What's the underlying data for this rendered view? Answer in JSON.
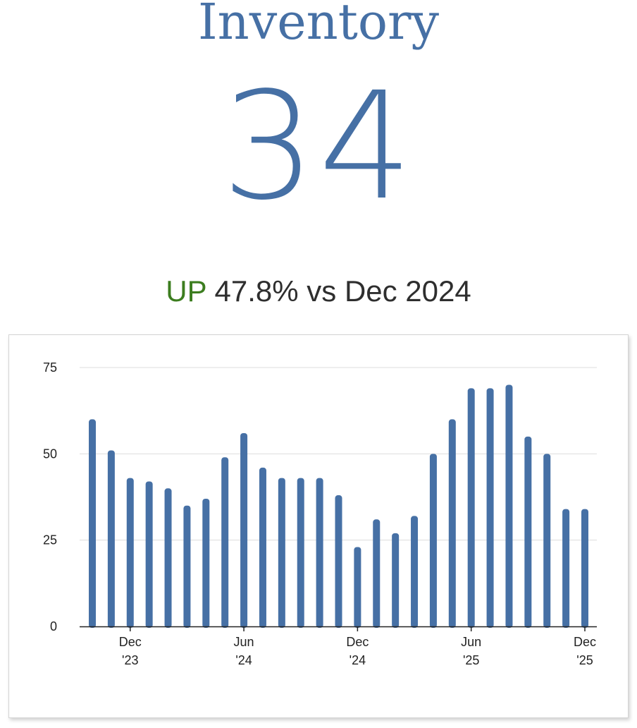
{
  "header": {
    "title": "Inventory",
    "value": "34",
    "change_direction": "UP",
    "change_text": "47.8% vs Dec 2024"
  },
  "colors": {
    "accent": "#4670a5",
    "up": "#3c7d1f",
    "text": "#2e2e2e",
    "grid": "#dddddd",
    "axis": "#222222"
  },
  "chart_data": {
    "type": "bar",
    "title": "",
    "xlabel": "",
    "ylabel": "",
    "ylim": [
      0,
      75
    ],
    "yticks": [
      0,
      25,
      50,
      75
    ],
    "grid": true,
    "categories": [
      "Oct 2023",
      "Nov 2023",
      "Dec 2023",
      "Jan 2024",
      "Feb 2024",
      "Mar 2024",
      "Apr 2024",
      "May 2024",
      "Jun 2024",
      "Jul 2024",
      "Aug 2024",
      "Sep 2024",
      "Oct 2024",
      "Nov 2024",
      "Dec 2024",
      "Jan 2025",
      "Feb 2025",
      "Mar 2025",
      "Apr 2025",
      "May 2025",
      "Jun 2025",
      "Jul 2025",
      "Aug 2025",
      "Sep 2025",
      "Oct 2025",
      "Nov 2025",
      "Dec 2025"
    ],
    "values": [
      60,
      51,
      43,
      42,
      40,
      35,
      37,
      49,
      56,
      46,
      43,
      43,
      43,
      38,
      23,
      31,
      27,
      32,
      50,
      60,
      69,
      69,
      70,
      55,
      50,
      34,
      34
    ],
    "xticks": [
      {
        "index": 2,
        "line1": "Dec",
        "line2": "'23"
      },
      {
        "index": 8,
        "line1": "Jun",
        "line2": "'24"
      },
      {
        "index": 14,
        "line1": "Dec",
        "line2": "'24"
      },
      {
        "index": 20,
        "line1": "Jun",
        "line2": "'25"
      },
      {
        "index": 26,
        "line1": "Dec",
        "line2": "'25"
      }
    ]
  }
}
